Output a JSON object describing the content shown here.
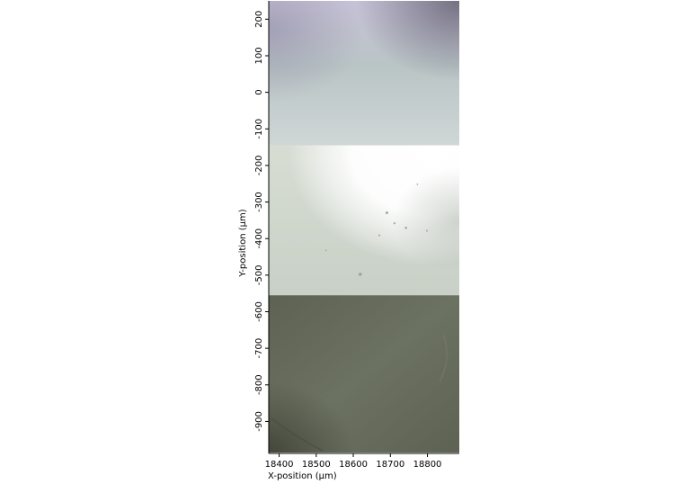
{
  "chart_data": {
    "type": "image-mosaic",
    "xlabel": "X-position (µm)",
    "ylabel": "Y-position (µm)",
    "xlim": [
      18372,
      18886
    ],
    "ylim": [
      -985,
      250
    ],
    "x_ticks": [
      "18400",
      "18500",
      "18600",
      "18700",
      "18800"
    ],
    "y_ticks": [
      "200",
      "100",
      "0",
      "-100",
      "-200",
      "-300",
      "-400",
      "-500",
      "-600",
      "-700",
      "-800",
      "-900"
    ],
    "grid": false,
    "tiles": [
      {
        "name": "tile-top",
        "y_range": [
          -145,
          250
        ],
        "colors": {
          "base": "#b9c4c5",
          "highlight": "#cfd7d6",
          "shadow_corner": "#6f6c7e",
          "top_tint": "#c9c3d9"
        }
      },
      {
        "name": "tile-middle",
        "y_range": [
          -555,
          -145
        ],
        "colors": {
          "base": "#c8d0c7",
          "bright": "#ffffff",
          "mid": "#d7ddd3",
          "edge": "#aeb6ad"
        }
      },
      {
        "name": "tile-bottom",
        "y_range": [
          -985,
          -555
        ],
        "colors": {
          "base": "#5d6252",
          "light": "#6c7262",
          "dark": "#3e4236"
        }
      }
    ]
  }
}
